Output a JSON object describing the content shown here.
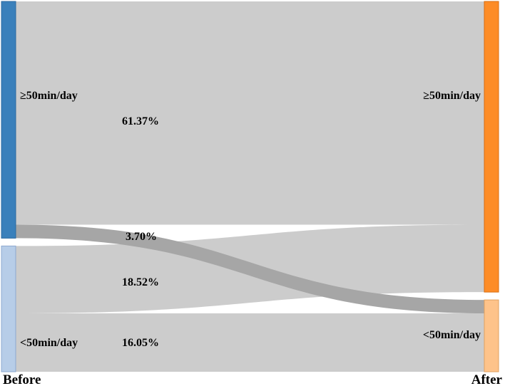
{
  "diagram": {
    "left_axis_label": "Before",
    "right_axis_label": "After",
    "left_nodes": [
      {
        "id": "before_high",
        "label": "≥50min/day",
        "color": "#3a80bb"
      },
      {
        "id": "before_low",
        "label": "<50min/day",
        "color": "#b7cde8"
      }
    ],
    "right_nodes": [
      {
        "id": "after_high",
        "label": "≥50min/day",
        "color": "#fd8c27"
      },
      {
        "id": "after_low",
        "label": "<50min/day",
        "color": "#fec38a"
      }
    ],
    "flows": [
      {
        "from": "before_high",
        "to": "after_high",
        "value": 61.37,
        "label": "61.37%",
        "color": "#cccccc"
      },
      {
        "from": "before_high",
        "to": "after_low",
        "value": 3.7,
        "label": "3.70%",
        "color": "#a6a6a6"
      },
      {
        "from": "before_low",
        "to": "after_high",
        "value": 18.52,
        "label": "18.52%",
        "color": "#cccccc"
      },
      {
        "from": "before_low",
        "to": "after_low",
        "value": 16.05,
        "label": "16.05%",
        "color": "#cccccc"
      }
    ]
  }
}
